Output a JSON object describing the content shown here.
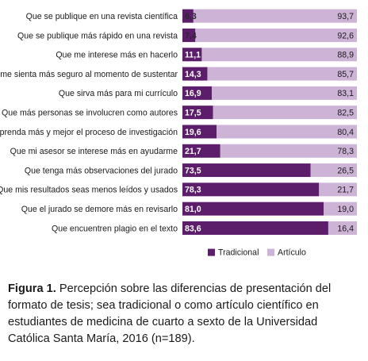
{
  "chart_data": {
    "type": "bar",
    "orientation": "horizontal",
    "stacked": true,
    "percent_stacked": true,
    "categories": [
      "Que se publique en una revista científica",
      "Que se publique más rápido en una revista",
      "Que me interese más en hacerlo",
      "Que me sienta más seguro al momento de sustentar",
      "Que sirva más para mi currículo",
      "Que más personas se involucren como autores",
      "Que aprenda más y mejor el proceso de investigación",
      "Que mi asesor se interese más en ayudarme",
      "Que tenga más observaciones del jurado",
      "Que mis resultados seas menos leídos y usados",
      "Que el jurado se demore más en revisarlo",
      "Que encuentren plagio en el texto"
    ],
    "series": [
      {
        "name": "Tradicional",
        "color": "#5c1e6b",
        "values": [
          6.3,
          7.4,
          11.1,
          14.3,
          16.9,
          17.5,
          19.6,
          21.7,
          73.5,
          78.3,
          81.0,
          83.6
        ],
        "labels": [
          "6,3",
          "7,4",
          "11,1",
          "14,3",
          "16,9",
          "17,5",
          "19,6",
          "21,7",
          "73,5",
          "78,3",
          "81,0",
          "83,6"
        ]
      },
      {
        "name": "Artículo",
        "color": "#cdb3d6",
        "values": [
          93.7,
          92.6,
          88.9,
          85.7,
          83.1,
          82.5,
          80.4,
          78.3,
          26.5,
          21.7,
          19.0,
          16.4
        ],
        "labels": [
          "93,7",
          "92,6",
          "88,9",
          "85,7",
          "83,1",
          "82,5",
          "80,4",
          "78,3",
          "26,5",
          "21,7",
          "19,0",
          "16,4"
        ]
      }
    ],
    "xlim": [
      0,
      100
    ],
    "legend": "bottom",
    "grid": false
  },
  "caption": {
    "label": "Figura 1.",
    "text": " Percepción sobre las diferencias de presentación del formato de tesis; sea tradicional o como artículo científico en estudiantes de medicina de cuarto a sexto de la Universidad Católica Santa María, 2016 (n=189)."
  }
}
